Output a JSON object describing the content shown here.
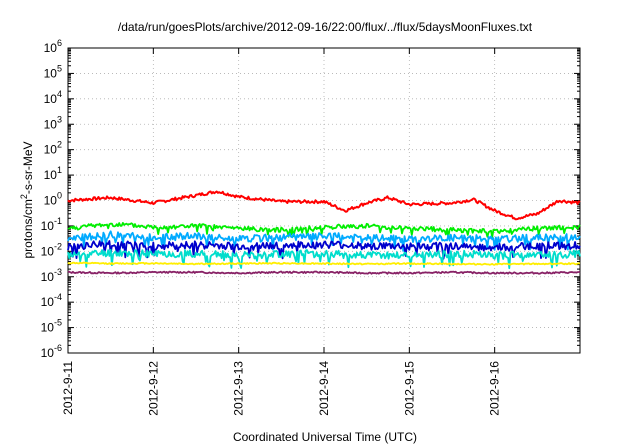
{
  "chart_data": {
    "type": "line",
    "title": "/data/run/goesPlots/archive/2012-09-16/22:00/flux/../flux/5daysMoonFluxes.txt",
    "xlabel": "Coordinated Universal Time (UTC)",
    "ylabel": "protons/cm²-s-sr-MeV",
    "ylabel_parts": {
      "pre": "protons/cm",
      "sup": "2",
      "post": "-s-sr-MeV"
    },
    "y_scale": "log",
    "ylim": [
      1e-06,
      1000000.0
    ],
    "y_ticks": [
      {
        "value": 1e-06,
        "base": "10",
        "exp": "-6"
      },
      {
        "value": 1e-05,
        "base": "10",
        "exp": "-5"
      },
      {
        "value": 0.0001,
        "base": "10",
        "exp": "-4"
      },
      {
        "value": 0.001,
        "base": "10",
        "exp": "-3"
      },
      {
        "value": 0.01,
        "base": "10",
        "exp": "-2"
      },
      {
        "value": 0.1,
        "base": "10",
        "exp": "-1"
      },
      {
        "value": 1,
        "base": "10",
        "exp": "0"
      },
      {
        "value": 10,
        "base": "10",
        "exp": "1"
      },
      {
        "value": 100,
        "base": "10",
        "exp": "2"
      },
      {
        "value": 1000,
        "base": "10",
        "exp": "3"
      },
      {
        "value": 10000,
        "base": "10",
        "exp": "4"
      },
      {
        "value": 100000,
        "base": "10",
        "exp": "5"
      },
      {
        "value": 1000000,
        "base": "10",
        "exp": "6"
      }
    ],
    "x_ticks": [
      "2012-9-11",
      "2012-9-12",
      "2012-9-13",
      "2012-9-14",
      "2012-9-15",
      "2012-9-16"
    ],
    "xlim": [
      "2012-9-11",
      "2012-9-17"
    ],
    "grid": true,
    "legend": "none",
    "series": [
      {
        "color": "#ff0000",
        "x": [
          "2012-9-11",
          "2012-9-11T12:00",
          "2012-9-12",
          "2012-9-12T12:00",
          "2012-9-12T18:00",
          "2012-9-13",
          "2012-9-13T12:00",
          "2012-9-14",
          "2012-9-14T06:00",
          "2012-9-14T12:00",
          "2012-9-14T18:00",
          "2012-9-15",
          "2012-9-15T12:00",
          "2012-9-15T18:00",
          "2012-9-16",
          "2012-9-16T06:00",
          "2012-9-16T12:00",
          "2012-9-16T18:00",
          "2012-9-17"
        ],
        "values": [
          1.0,
          1.3,
          0.8,
          1.6,
          2.3,
          1.4,
          0.9,
          0.9,
          0.4,
          0.8,
          1.3,
          0.7,
          0.8,
          1.1,
          0.4,
          0.2,
          0.3,
          1.0,
          0.8
        ]
      },
      {
        "color": "#00ee00",
        "x": [
          "2012-9-11",
          "2012-9-11T12:00",
          "2012-9-12",
          "2012-9-12T12:00",
          "2012-9-13",
          "2012-9-13T12:00",
          "2012-9-14",
          "2012-9-14T12:00",
          "2012-9-15",
          "2012-9-15T12:00",
          "2012-9-16",
          "2012-9-16T12:00",
          "2012-9-17"
        ],
        "values": [
          0.08,
          0.12,
          0.09,
          0.1,
          0.08,
          0.07,
          0.09,
          0.1,
          0.08,
          0.07,
          0.06,
          0.08,
          0.09
        ]
      },
      {
        "color": "#00aaff",
        "x": [
          "2012-9-11",
          "2012-9-11T12:00",
          "2012-9-12",
          "2012-9-12T12:00",
          "2012-9-13",
          "2012-9-13T12:00",
          "2012-9-14",
          "2012-9-14T12:00",
          "2012-9-15",
          "2012-9-15T12:00",
          "2012-9-16",
          "2012-9-16T12:00",
          "2012-9-17"
        ],
        "values": [
          0.03,
          0.045,
          0.035,
          0.04,
          0.03,
          0.035,
          0.04,
          0.035,
          0.03,
          0.035,
          0.03,
          0.035,
          0.035
        ]
      },
      {
        "color": "#0000cc",
        "x": [
          "2012-9-11",
          "2012-9-11T12:00",
          "2012-9-12",
          "2012-9-12T12:00",
          "2012-9-13",
          "2012-9-13T12:00",
          "2012-9-14",
          "2012-9-14T12:00",
          "2012-9-15",
          "2012-9-15T12:00",
          "2012-9-16",
          "2012-9-16T12:00",
          "2012-9-17"
        ],
        "values": [
          0.015,
          0.02,
          0.016,
          0.018,
          0.015,
          0.017,
          0.018,
          0.016,
          0.015,
          0.016,
          0.014,
          0.016,
          0.017
        ]
      },
      {
        "color": "#00ddcc",
        "x": [
          "2012-9-11",
          "2012-9-11T12:00",
          "2012-9-12",
          "2012-9-12T12:00",
          "2012-9-13",
          "2012-9-13T12:00",
          "2012-9-14",
          "2012-9-14T12:00",
          "2012-9-15",
          "2012-9-15T12:00",
          "2012-9-16",
          "2012-9-16T12:00",
          "2012-9-17"
        ],
        "values": [
          0.007,
          0.009,
          0.008,
          0.008,
          0.007,
          0.008,
          0.008,
          0.007,
          0.007,
          0.008,
          0.007,
          0.007,
          0.008
        ]
      },
      {
        "color": "#ffee00",
        "x": [
          "2012-9-11",
          "2012-9-11T12:00",
          "2012-9-12",
          "2012-9-12T12:00",
          "2012-9-13",
          "2012-9-13T12:00",
          "2012-9-14",
          "2012-9-14T12:00",
          "2012-9-15",
          "2012-9-15T12:00",
          "2012-9-16",
          "2012-9-16T12:00",
          "2012-9-17"
        ],
        "values": [
          0.0035,
          0.0033,
          0.0034,
          0.0032,
          0.0033,
          0.0034,
          0.0033,
          0.0032,
          0.0033,
          0.0032,
          0.0031,
          0.0032,
          0.0033
        ]
      },
      {
        "color": "#882266",
        "x": [
          "2012-9-11",
          "2012-9-11T12:00",
          "2012-9-12",
          "2012-9-12T12:00",
          "2012-9-13",
          "2012-9-13T12:00",
          "2012-9-14",
          "2012-9-14T12:00",
          "2012-9-15",
          "2012-9-15T12:00",
          "2012-9-16",
          "2012-9-16T12:00",
          "2012-9-17"
        ],
        "values": [
          0.0015,
          0.0014,
          0.0015,
          0.0015,
          0.0014,
          0.0015,
          0.0015,
          0.0014,
          0.0014,
          0.0015,
          0.0014,
          0.0014,
          0.0015
        ]
      }
    ]
  }
}
